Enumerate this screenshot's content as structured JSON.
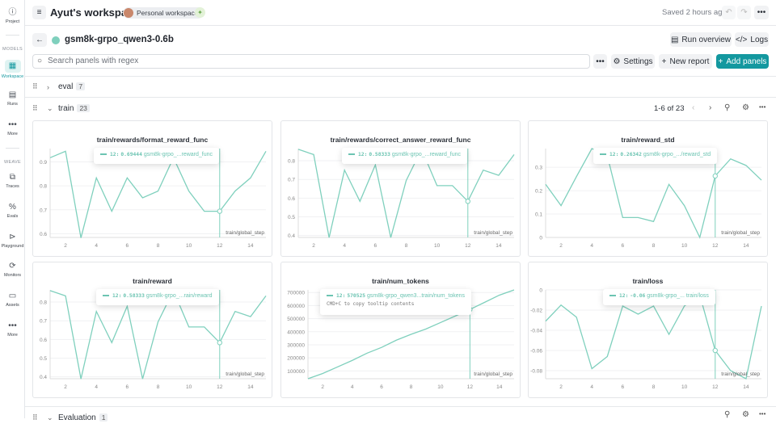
{
  "sidebar": {
    "items": [
      {
        "label": "Project",
        "icon": "info-icon"
      },
      {
        "label": "Workspace",
        "icon": "workspace-icon"
      },
      {
        "label": "Runs",
        "icon": "table-icon"
      },
      {
        "label": "More",
        "icon": "more-icon"
      },
      {
        "label": "Traces",
        "icon": "traces-icon"
      },
      {
        "label": "Evals",
        "icon": "evals-icon"
      },
      {
        "label": "Playground",
        "icon": "play-icon"
      },
      {
        "label": "Monitors",
        "icon": "monitor-icon"
      },
      {
        "label": "Assets",
        "icon": "folder-icon"
      },
      {
        "label": "More",
        "icon": "more-icon"
      }
    ],
    "sections": {
      "models": "MODELS",
      "weave": "WEAVE"
    }
  },
  "header": {
    "title": "Ayut's workspace",
    "badge": "Personal workspace",
    "saved": "Saved 2 hours ago"
  },
  "run": {
    "name": "gsm8k-grpo_qwen3-0.6b",
    "color": "#7fd0bd",
    "run_overview": "Run overview",
    "logs": "Logs"
  },
  "toolbar": {
    "search_placeholder": "Search panels with regex",
    "settings": "Settings",
    "new_report": "New report",
    "add_panels": "Add panels",
    "accent": "#13989f"
  },
  "sections": [
    {
      "label": "eval",
      "count": "7"
    },
    {
      "label": "train",
      "count": "23",
      "pagination": "1-6 of 23"
    },
    {
      "label": "Evaluation",
      "count": "1"
    }
  ],
  "hover_step": 12,
  "chart_data": [
    {
      "type": "line",
      "title": "train/rewards/format_reward_func",
      "xlabel": "train/global_step",
      "x": [
        1,
        2,
        3,
        4,
        5,
        6,
        7,
        8,
        9,
        10,
        11,
        12,
        13,
        14,
        15
      ],
      "series": [
        {
          "values": [
            0.917,
            0.944,
            0.583,
            0.833,
            0.694,
            0.833,
            0.75,
            0.778,
            0.917,
            0.778,
            0.694,
            0.694,
            0.778,
            0.833,
            0.944
          ]
        }
      ],
      "ylim": [
        0.585,
        0.955
      ],
      "yticks": [
        "0.6",
        "0.7",
        "0.8",
        "0.9"
      ],
      "xticks": [
        "2",
        "4",
        "6",
        "8",
        "10",
        "12",
        "14"
      ],
      "tooltip": {
        "step": "12:",
        "value": "0.69444",
        "run": "gsm8k-grpo_...reward_func"
      }
    },
    {
      "type": "line",
      "title": "train/rewards/correct_answer_reward_func",
      "xlabel": "train/global_step",
      "x": [
        1,
        2,
        3,
        4,
        5,
        6,
        7,
        8,
        9,
        10,
        11,
        12,
        13,
        14,
        15
      ],
      "series": [
        {
          "values": [
            0.861,
            0.833,
            0.389,
            0.75,
            0.583,
            0.778,
            0.389,
            0.694,
            0.861,
            0.667,
            0.667,
            0.583,
            0.75,
            0.722,
            0.833
          ]
        }
      ],
      "ylim": [
        0.39,
        0.865
      ],
      "yticks": [
        "0.4",
        "0.5",
        "0.6",
        "0.7",
        "0.8"
      ],
      "xticks": [
        "2",
        "4",
        "6",
        "8",
        "10",
        "12",
        "14"
      ],
      "tooltip": {
        "step": "12:",
        "value": "0.58333",
        "run": "gsm8k-grpo_...reward_func"
      }
    },
    {
      "type": "line",
      "title": "train/reward_std",
      "xlabel": "train/global_step",
      "x": [
        1,
        2,
        3,
        4,
        5,
        6,
        7,
        8,
        9,
        10,
        11,
        12,
        13,
        14,
        15
      ],
      "series": [
        {
          "values": [
            0.227,
            0.136,
            0.26,
            0.38,
            0.35,
            0.085,
            0.085,
            0.068,
            0.227,
            0.136,
            0,
            0.263,
            0.336,
            0.308,
            0.245
          ]
        }
      ],
      "ylim": [
        0,
        0.38
      ],
      "yticks": [
        "0",
        "0.1",
        "0.2",
        "0.3"
      ],
      "xticks": [
        "2",
        "4",
        "6",
        "8",
        "10",
        "12",
        "14"
      ],
      "tooltip": {
        "step": "12:",
        "value": "0.26342",
        "run": "gsm8k-grpo_.../reward_std"
      }
    },
    {
      "type": "line",
      "title": "train/reward",
      "xlabel": "train/global_step",
      "x": [
        1,
        2,
        3,
        4,
        5,
        6,
        7,
        8,
        9,
        10,
        11,
        12,
        13,
        14,
        15
      ],
      "series": [
        {
          "values": [
            0.861,
            0.833,
            0.389,
            0.75,
            0.583,
            0.778,
            0.389,
            0.694,
            0.861,
            0.667,
            0.667,
            0.583,
            0.75,
            0.722,
            0.833
          ]
        }
      ],
      "ylim": [
        0.39,
        0.865
      ],
      "yticks": [
        "0.4",
        "0.5",
        "0.6",
        "0.7",
        "0.8"
      ],
      "xticks": [
        "2",
        "4",
        "6",
        "8",
        "10",
        "12",
        "14"
      ],
      "tooltip": {
        "step": "12:",
        "value": "0.58333",
        "run": "gsm8k-grpo_...rain/reward"
      }
    },
    {
      "type": "line",
      "title": "train/num_tokens",
      "xlabel": "train/global_step",
      "x": [
        1,
        2,
        3,
        4,
        5,
        6,
        7,
        8,
        9,
        10,
        11,
        12,
        13,
        14,
        15
      ],
      "series": [
        {
          "values": [
            40000,
            80000,
            130000,
            180000,
            235000,
            280000,
            335000,
            380000,
            420000,
            470000,
            520000,
            570525,
            625000,
            680000,
            720000
          ]
        }
      ],
      "ylim": [
        40000,
        720000
      ],
      "yticks": [
        "100000",
        "200000",
        "300000",
        "400000",
        "500000",
        "600000",
        "700000"
      ],
      "xticks": [
        "2",
        "4",
        "6",
        "8",
        "10",
        "12",
        "14"
      ],
      "tooltip": {
        "step": "12:",
        "value": "570525",
        "run": "gsm8k-grpo_qwen3...train/num_tokens",
        "hint": "CMD+C to copy tooltip contents"
      }
    },
    {
      "type": "line",
      "title": "train/loss",
      "xlabel": "train/global_step",
      "x": [
        1,
        2,
        3,
        4,
        5,
        6,
        7,
        8,
        9,
        10,
        11,
        12,
        13,
        14,
        15
      ],
      "series": [
        {
          "values": [
            -0.031,
            -0.015,
            -0.027,
            -0.078,
            -0.066,
            -0.016,
            -0.024,
            -0.016,
            -0.044,
            -0.016,
            -0.005,
            -0.06,
            -0.08,
            -0.088,
            -0.016
          ]
        }
      ],
      "ylim": [
        -0.088,
        0
      ],
      "yticks": [
        "-0.08",
        "-0.06",
        "-0.04",
        "-0.02",
        "0"
      ],
      "xticks": [
        "2",
        "4",
        "6",
        "8",
        "10",
        "12",
        "14"
      ],
      "tooltip": {
        "step": "12:",
        "value": "-0.06",
        "run": "gsm8k-grpo_... train/loss"
      }
    }
  ],
  "line_color": "#7fd0bd"
}
